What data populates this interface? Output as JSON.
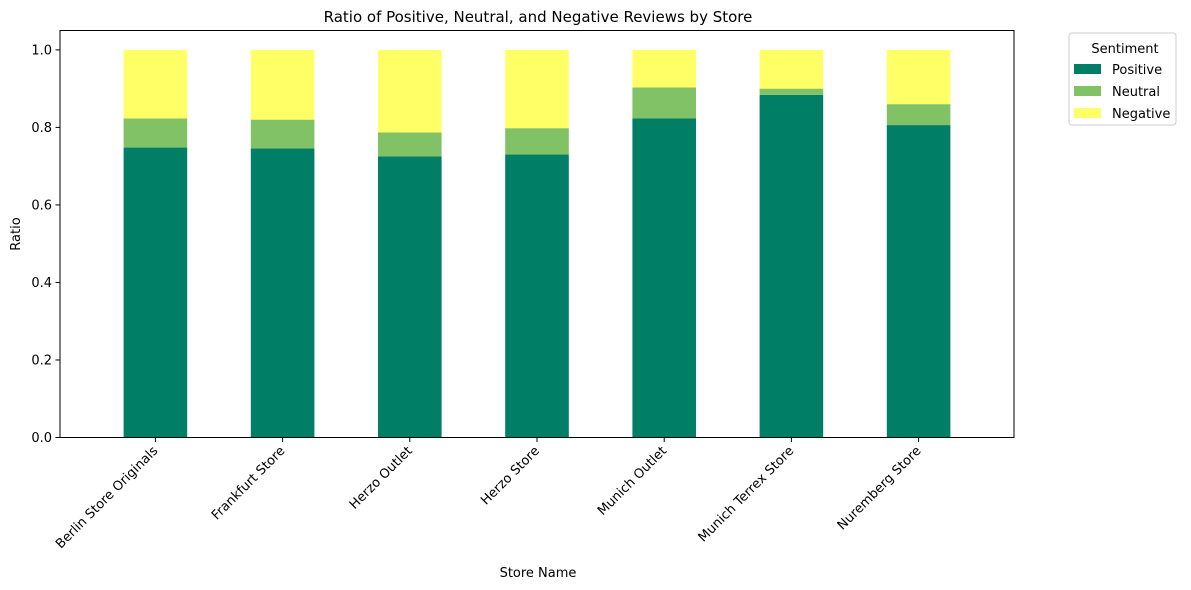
{
  "chart_data": {
    "type": "bar",
    "stacked": true,
    "title": "Ratio of Positive, Neutral, and Negative Reviews by Store",
    "xlabel": "Store Name",
    "ylabel": "Ratio",
    "ylim": [
      0,
      1.05
    ],
    "yticks": [
      0.0,
      0.2,
      0.4,
      0.6,
      0.8,
      1.0
    ],
    "ytick_labels": [
      "0.0",
      "0.2",
      "0.4",
      "0.6",
      "0.8",
      "1.0"
    ],
    "grid": false,
    "categories": [
      "Berlin Store Originals",
      "Frankfurt Store",
      "Herzo Outlet",
      "Herzo Store",
      "Munich Outlet",
      "Munich Terrex Store",
      "Nuremberg Store"
    ],
    "series": [
      {
        "name": "Positive",
        "color": "#007f66",
        "values": [
          0.748,
          0.746,
          0.725,
          0.73,
          0.823,
          0.884,
          0.806
        ]
      },
      {
        "name": "Neutral",
        "color": "#82c267",
        "values": [
          0.075,
          0.074,
          0.062,
          0.068,
          0.08,
          0.016,
          0.054
        ]
      },
      {
        "name": "Negative",
        "color": "#ffff66",
        "values": [
          0.177,
          0.18,
          0.213,
          0.202,
          0.097,
          0.1,
          0.14
        ]
      }
    ],
    "legend": {
      "title": "Sentiment",
      "position": "outside top-right"
    }
  }
}
